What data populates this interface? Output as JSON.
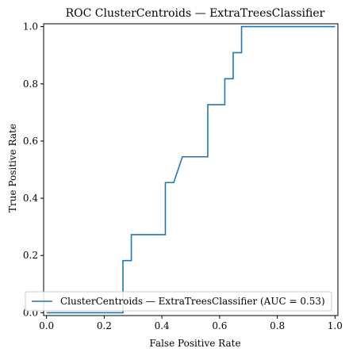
{
  "chart_data": {
    "type": "line",
    "title": "ROC ClusterCentroids — ExtraTreesClassifier",
    "xlabel": "False Positive Rate",
    "ylabel": "True Positive Rate",
    "xlim": [
      -0.01,
      1.01
    ],
    "ylim": [
      -0.01,
      1.01
    ],
    "xticks": [
      "0.0",
      "0.2",
      "0.4",
      "0.6",
      "0.8",
      "1.0"
    ],
    "yticks": [
      "0.0",
      "0.2",
      "0.4",
      "0.6",
      "0.8",
      "1.0"
    ],
    "grid": false,
    "legend_position": "lower-right",
    "series": [
      {
        "name": "ClusterCentroids — ExtraTreesClassifier (AUC = 0.53)",
        "color": "#1f77b4",
        "x": [
          0.0,
          0.265,
          0.265,
          0.265,
          0.294,
          0.294,
          0.412,
          0.412,
          0.441,
          0.471,
          0.559,
          0.559,
          0.618,
          0.618,
          0.647,
          0.647,
          0.676,
          0.676,
          1.0
        ],
        "y": [
          0.0,
          0.0,
          0.091,
          0.182,
          0.182,
          0.273,
          0.273,
          0.455,
          0.455,
          0.545,
          0.545,
          0.727,
          0.727,
          0.818,
          0.818,
          0.909,
          0.909,
          1.0,
          1.0
        ]
      }
    ]
  }
}
